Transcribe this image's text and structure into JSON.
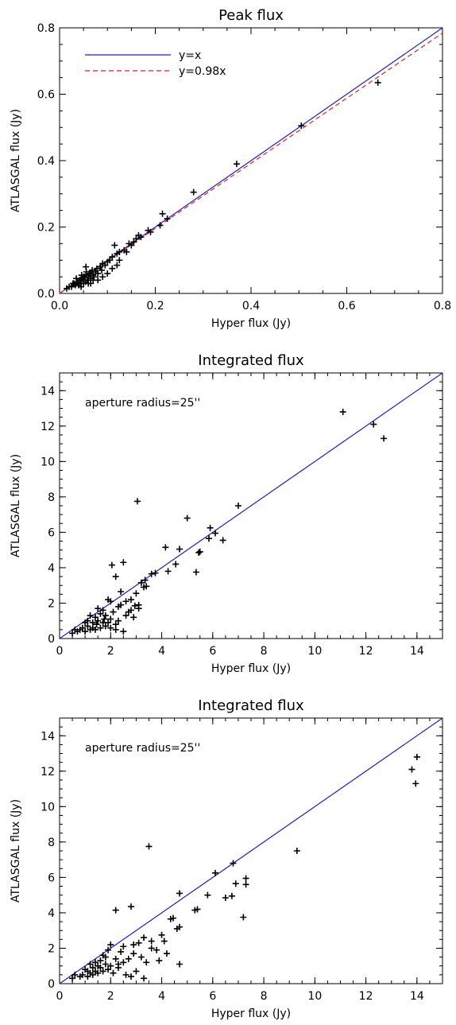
{
  "chart_data": [
    {
      "type": "scatter",
      "title": "Peak flux",
      "xlabel": "Hyper flux (Jy)",
      "ylabel": "ATLASGAL flux (Jy)",
      "xlim": [
        0,
        0.8
      ],
      "ylim": [
        0,
        0.8
      ],
      "xticks": [
        "0.0",
        "0.2",
        "0.4",
        "0.6",
        "0.8"
      ],
      "yticks": [
        "0.0",
        "0.2",
        "0.4",
        "0.6",
        "0.8"
      ],
      "grid": false,
      "legend_position": "top-left",
      "lines": [
        {
          "name": "y=x",
          "slope": 1.0,
          "color": "#1f1fd0",
          "style": "solid"
        },
        {
          "name": "y=0.98x",
          "slope": 0.98,
          "color": "#e02020",
          "style": "dashed"
        }
      ],
      "points": [
        [
          0.665,
          0.635
        ],
        [
          0.505,
          0.505
        ],
        [
          0.37,
          0.39
        ],
        [
          0.28,
          0.305
        ],
        [
          0.225,
          0.225
        ],
        [
          0.215,
          0.24
        ],
        [
          0.21,
          0.205
        ],
        [
          0.19,
          0.185
        ],
        [
          0.185,
          0.19
        ],
        [
          0.17,
          0.17
        ],
        [
          0.165,
          0.175
        ],
        [
          0.16,
          0.165
        ],
        [
          0.155,
          0.155
        ],
        [
          0.15,
          0.145
        ],
        [
          0.145,
          0.15
        ],
        [
          0.14,
          0.125
        ],
        [
          0.135,
          0.13
        ],
        [
          0.125,
          0.1
        ],
        [
          0.125,
          0.125
        ],
        [
          0.12,
          0.12
        ],
        [
          0.115,
          0.145
        ],
        [
          0.11,
          0.11
        ],
        [
          0.105,
          0.1
        ],
        [
          0.1,
          0.095
        ],
        [
          0.095,
          0.085
        ],
        [
          0.09,
          0.09
        ],
        [
          0.088,
          0.07
        ],
        [
          0.085,
          0.08
        ],
        [
          0.08,
          0.06
        ],
        [
          0.078,
          0.075
        ],
        [
          0.075,
          0.065
        ],
        [
          0.072,
          0.05
        ],
        [
          0.07,
          0.055
        ],
        [
          0.068,
          0.07
        ],
        [
          0.065,
          0.045
        ],
        [
          0.062,
          0.06
        ],
        [
          0.06,
          0.05
        ],
        [
          0.058,
          0.04
        ],
        [
          0.056,
          0.065
        ],
        [
          0.055,
          0.08
        ],
        [
          0.054,
          0.035
        ],
        [
          0.052,
          0.05
        ],
        [
          0.05,
          0.03
        ],
        [
          0.048,
          0.045
        ],
        [
          0.046,
          0.055
        ],
        [
          0.045,
          0.02
        ],
        [
          0.044,
          0.03
        ],
        [
          0.042,
          0.04
        ],
        [
          0.04,
          0.025
        ],
        [
          0.038,
          0.035
        ],
        [
          0.036,
          0.03
        ],
        [
          0.035,
          0.045
        ],
        [
          0.033,
          0.025
        ],
        [
          0.03,
          0.03
        ],
        [
          0.028,
          0.03
        ],
        [
          0.025,
          0.02
        ],
        [
          0.02,
          0.02
        ],
        [
          0.015,
          0.015
        ],
        [
          0.06,
          0.03
        ],
        [
          0.065,
          0.03
        ],
        [
          0.07,
          0.04
        ],
        [
          0.08,
          0.04
        ],
        [
          0.09,
          0.05
        ],
        [
          0.1,
          0.06
        ],
        [
          0.11,
          0.075
        ],
        [
          0.12,
          0.085
        ],
        [
          0.065,
          0.06
        ],
        [
          0.05,
          0.05
        ],
        [
          0.055,
          0.055
        ],
        [
          0.045,
          0.04
        ]
      ]
    },
    {
      "type": "scatter",
      "title": "Integrated flux",
      "annotation": "aperture radius=25''",
      "xlabel": "Hyper flux (Jy)",
      "ylabel": "ATLASGAL flux (Jy)",
      "xlim": [
        0,
        15
      ],
      "ylim": [
        0,
        15
      ],
      "xticks": [
        "0",
        "2",
        "4",
        "6",
        "8",
        "10",
        "12",
        "14"
      ],
      "yticks": [
        "0",
        "2",
        "4",
        "6",
        "8",
        "10",
        "12",
        "14"
      ],
      "grid": false,
      "lines": [
        {
          "name": "y=x",
          "slope": 1.0,
          "color": "#1f1fd0",
          "style": "solid"
        }
      ],
      "points": [
        [
          11.1,
          12.8
        ],
        [
          12.3,
          12.1
        ],
        [
          12.7,
          11.3
        ],
        [
          3.05,
          7.75
        ],
        [
          7.0,
          7.5
        ],
        [
          5.0,
          6.8
        ],
        [
          5.9,
          6.25
        ],
        [
          6.1,
          5.95
        ],
        [
          5.85,
          5.65
        ],
        [
          6.4,
          5.55
        ],
        [
          5.5,
          4.9
        ],
        [
          5.45,
          4.85
        ],
        [
          4.15,
          5.15
        ],
        [
          4.7,
          5.05
        ],
        [
          4.25,
          3.8
        ],
        [
          4.55,
          4.2
        ],
        [
          5.35,
          3.75
        ],
        [
          3.75,
          3.7
        ],
        [
          3.6,
          3.65
        ],
        [
          3.35,
          3.3
        ],
        [
          3.2,
          3.15
        ],
        [
          2.5,
          4.3
        ],
        [
          2.05,
          4.15
        ],
        [
          2.2,
          3.5
        ],
        [
          3.3,
          2.9
        ],
        [
          3.4,
          2.95
        ],
        [
          3.0,
          2.55
        ],
        [
          2.8,
          2.2
        ],
        [
          2.6,
          2.1
        ],
        [
          2.4,
          2.65
        ],
        [
          2.95,
          1.85
        ],
        [
          3.1,
          1.9
        ],
        [
          2.8,
          1.6
        ],
        [
          2.7,
          1.5
        ],
        [
          2.6,
          1.3
        ],
        [
          2.9,
          1.2
        ],
        [
          3.1,
          1.7
        ],
        [
          2.3,
          1.0
        ],
        [
          2.0,
          2.1
        ],
        [
          1.9,
          2.2
        ],
        [
          1.8,
          1.3
        ],
        [
          1.7,
          1.6
        ],
        [
          1.6,
          1.4
        ],
        [
          1.5,
          1.0
        ],
        [
          1.4,
          1.2
        ],
        [
          1.3,
          0.9
        ],
        [
          1.2,
          1.3
        ],
        [
          1.1,
          0.7
        ],
        [
          1.0,
          0.9
        ],
        [
          0.9,
          0.6
        ],
        [
          0.8,
          0.5
        ],
        [
          0.6,
          0.5
        ],
        [
          0.5,
          0.3
        ],
        [
          1.0,
          0.4
        ],
        [
          1.2,
          0.5
        ],
        [
          1.4,
          0.5
        ],
        [
          1.6,
          0.6
        ],
        [
          1.8,
          0.7
        ],
        [
          2.0,
          0.6
        ],
        [
          2.2,
          0.8
        ],
        [
          2.5,
          0.4
        ],
        [
          2.0,
          1.1
        ],
        [
          2.3,
          1.8
        ],
        [
          1.5,
          1.7
        ],
        [
          1.7,
          0.9
        ],
        [
          1.3,
          0.6
        ],
        [
          2.1,
          1.5
        ],
        [
          2.4,
          1.9
        ],
        [
          1.9,
          0.9
        ],
        [
          1.1,
          1.0
        ],
        [
          0.7,
          0.4
        ],
        [
          1.45,
          0.8
        ],
        [
          1.75,
          1.1
        ],
        [
          2.2,
          0.5
        ]
      ]
    },
    {
      "type": "scatter",
      "title": "Integrated flux",
      "annotation": "aperture radius=25''",
      "xlabel": "Hyper flux (Jy)",
      "ylabel": "ATLASGAL flux (Jy)",
      "xlim": [
        0,
        15
      ],
      "ylim": [
        0,
        15
      ],
      "xticks": [
        "0",
        "2",
        "4",
        "6",
        "8",
        "10",
        "12",
        "14"
      ],
      "yticks": [
        "0",
        "2",
        "4",
        "6",
        "8",
        "10",
        "12",
        "14"
      ],
      "grid": false,
      "lines": [
        {
          "name": "y=x",
          "slope": 1.0,
          "color": "#1f1fd0",
          "style": "solid"
        }
      ],
      "points": [
        [
          14.0,
          12.8
        ],
        [
          13.8,
          12.1
        ],
        [
          13.95,
          11.3
        ],
        [
          3.5,
          7.75
        ],
        [
          9.3,
          7.5
        ],
        [
          6.8,
          6.8
        ],
        [
          6.1,
          6.25
        ],
        [
          7.3,
          5.95
        ],
        [
          7.3,
          5.6
        ],
        [
          6.9,
          5.65
        ],
        [
          6.5,
          4.85
        ],
        [
          6.75,
          4.95
        ],
        [
          5.8,
          5.0
        ],
        [
          4.7,
          5.1
        ],
        [
          5.4,
          4.2
        ],
        [
          5.3,
          4.15
        ],
        [
          7.2,
          3.75
        ],
        [
          4.45,
          3.7
        ],
        [
          4.35,
          3.65
        ],
        [
          4.7,
          3.2
        ],
        [
          4.6,
          3.1
        ],
        [
          2.8,
          4.35
        ],
        [
          2.2,
          4.15
        ],
        [
          4.0,
          2.75
        ],
        [
          3.6,
          2.4
        ],
        [
          3.3,
          2.6
        ],
        [
          3.1,
          2.3
        ],
        [
          2.9,
          2.2
        ],
        [
          2.5,
          2.1
        ],
        [
          3.8,
          1.9
        ],
        [
          4.2,
          1.7
        ],
        [
          3.2,
          1.5
        ],
        [
          3.9,
          1.3
        ],
        [
          4.7,
          1.1
        ],
        [
          3.4,
          1.2
        ],
        [
          2.7,
          1.4
        ],
        [
          2.4,
          1.8
        ],
        [
          2.3,
          1.1
        ],
        [
          2.0,
          2.2
        ],
        [
          1.9,
          1.9
        ],
        [
          1.8,
          1.5
        ],
        [
          1.7,
          1.6
        ],
        [
          1.6,
          1.3
        ],
        [
          1.5,
          1.0
        ],
        [
          1.4,
          1.2
        ],
        [
          1.3,
          0.9
        ],
        [
          1.2,
          1.1
        ],
        [
          1.1,
          0.7
        ],
        [
          1.0,
          0.8
        ],
        [
          0.9,
          0.5
        ],
        [
          0.8,
          0.4
        ],
        [
          0.6,
          0.5
        ],
        [
          0.5,
          0.3
        ],
        [
          1.1,
          0.4
        ],
        [
          1.3,
          0.5
        ],
        [
          1.5,
          0.6
        ],
        [
          1.7,
          0.7
        ],
        [
          1.9,
          0.8
        ],
        [
          2.1,
          0.6
        ],
        [
          2.3,
          0.9
        ],
        [
          2.6,
          0.5
        ],
        [
          2.8,
          0.4
        ],
        [
          3.0,
          0.7
        ],
        [
          3.3,
          0.3
        ],
        [
          2.2,
          1.4
        ],
        [
          2.5,
          1.2
        ],
        [
          2.0,
          1.0
        ],
        [
          1.8,
          1.1
        ],
        [
          1.6,
          0.9
        ],
        [
          1.4,
          0.7
        ],
        [
          1.2,
          0.6
        ],
        [
          2.9,
          1.7
        ],
        [
          3.6,
          2.0
        ],
        [
          4.1,
          2.4
        ]
      ]
    }
  ]
}
